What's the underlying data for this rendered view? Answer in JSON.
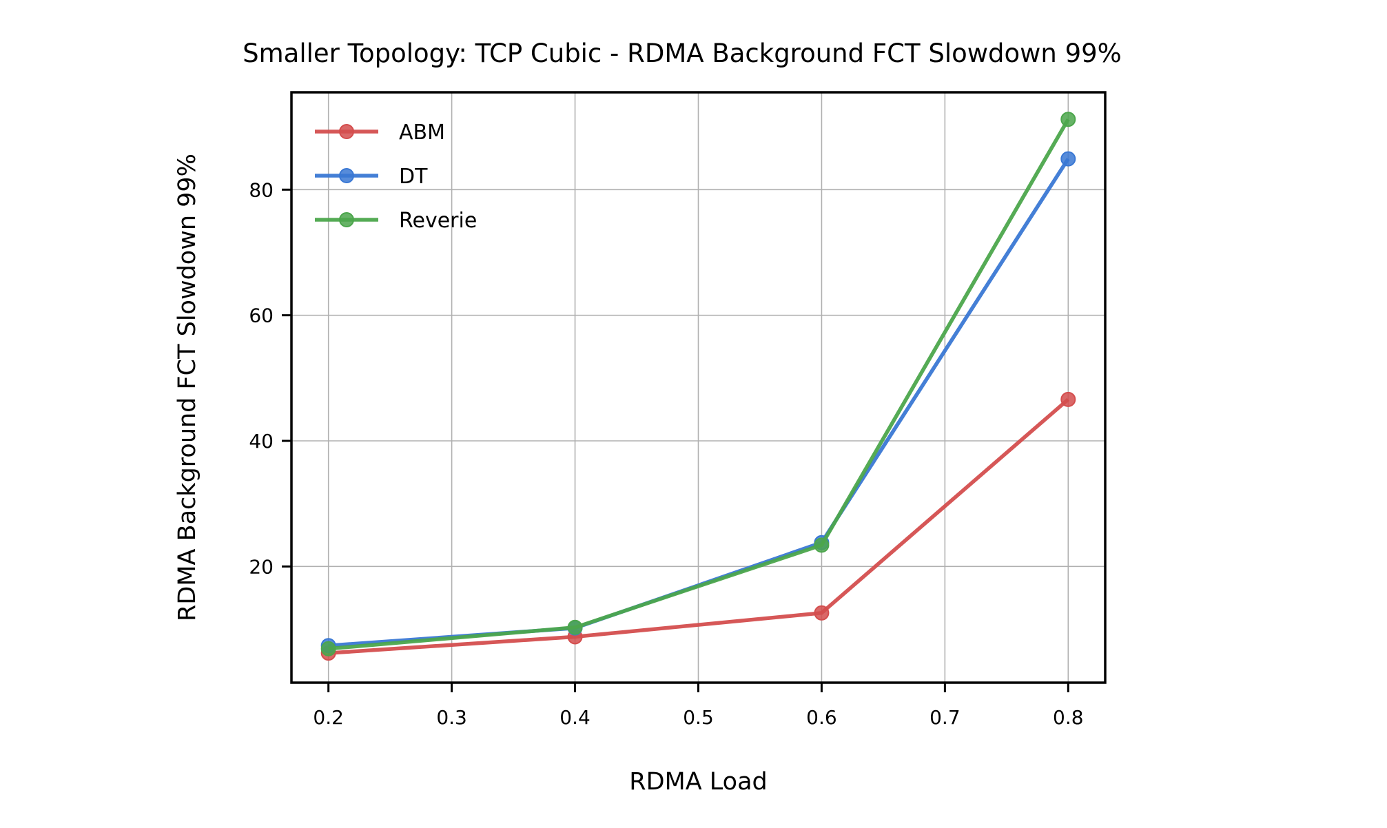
{
  "chart_data": {
    "type": "line",
    "title": "Smaller Topology: TCP Cubic - RDMA Background FCT Slowdown 99%",
    "xlabel": "RDMA Load",
    "ylabel": "RDMA Background FCT Slowdown 99%",
    "x": [
      0.2,
      0.4,
      0.6,
      0.8
    ],
    "xlim": [
      0.17,
      0.83
    ],
    "ylim": [
      1.5,
      95.5
    ],
    "xticks": [
      0.2,
      0.3,
      0.4,
      0.5,
      0.6,
      0.7,
      0.8
    ],
    "xtick_labels": [
      "0.2",
      "0.3",
      "0.4",
      "0.5",
      "0.6",
      "0.7",
      "0.8"
    ],
    "yticks": [
      20,
      40,
      60,
      80
    ],
    "ytick_labels": [
      "20",
      "40",
      "60",
      "80"
    ],
    "grid": true,
    "legend_position": "top-left",
    "series": [
      {
        "name": "ABM",
        "color": "#d44e4e",
        "values": [
          6.2,
          8.8,
          12.6,
          46.6
        ]
      },
      {
        "name": "DT",
        "color": "#3a78d4",
        "values": [
          7.4,
          10.2,
          23.8,
          84.9
        ]
      },
      {
        "name": "Reverie",
        "color": "#4ca64c",
        "values": [
          6.9,
          10.3,
          23.4,
          91.2
        ]
      }
    ]
  }
}
